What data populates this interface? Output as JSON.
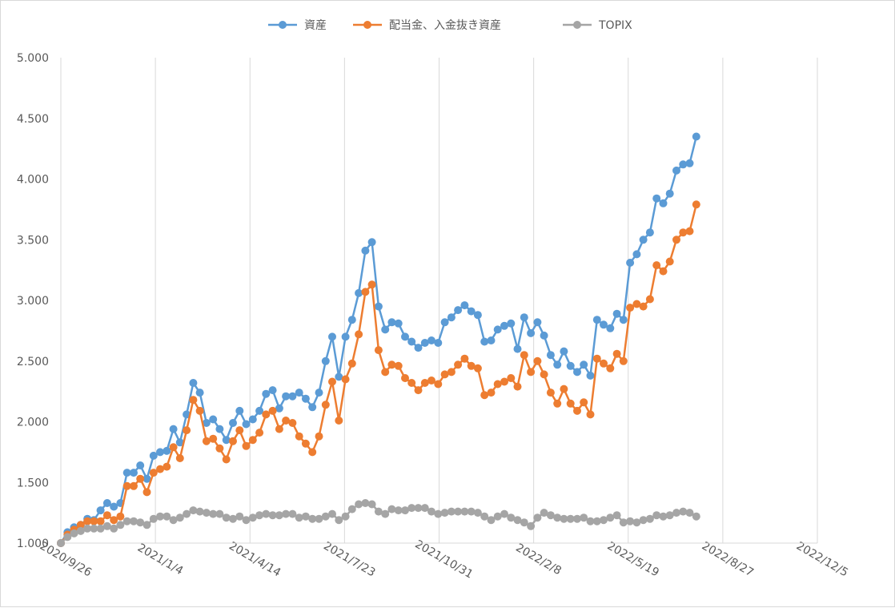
{
  "chart_data": {
    "type": "line",
    "title": "",
    "xlabel": "",
    "ylabel": "",
    "x_axis": {
      "type": "date",
      "min": "2020-09-26",
      "max": "2022-12-05",
      "tick_labels": [
        "2020/9/26",
        "2021/1/4",
        "2021/4/14",
        "2021/7/23",
        "2021/10/31",
        "2022/2/8",
        "2022/5/19",
        "2022/8/27",
        "2022/12/5"
      ]
    },
    "y_axis": {
      "min": 1.0,
      "max": 5.0,
      "step": 0.5,
      "tick_labels": [
        "1.000",
        "1.500",
        "2.000",
        "2.500",
        "3.000",
        "3.500",
        "4.000",
        "4.500",
        "5.000"
      ]
    },
    "grid": "vertical gridlines only",
    "legend_position": "top",
    "start_date": "2020-09-26",
    "interval_days": 7,
    "series": [
      {
        "name": "資産",
        "color": "#5B9BD5",
        "values": [
          1.0,
          1.09,
          1.13,
          1.15,
          1.2,
          1.19,
          1.27,
          1.33,
          1.3,
          1.33,
          1.58,
          1.58,
          1.64,
          1.53,
          1.72,
          1.75,
          1.76,
          1.94,
          1.83,
          2.06,
          2.32,
          2.24,
          1.99,
          2.02,
          1.94,
          1.85,
          1.99,
          2.09,
          1.98,
          2.02,
          2.09,
          2.23,
          2.26,
          2.11,
          2.21,
          2.21,
          2.24,
          2.19,
          2.12,
          2.24,
          2.5,
          2.7,
          2.37,
          2.7,
          2.84,
          3.06,
          3.41,
          3.48,
          2.95,
          2.76,
          2.82,
          2.81,
          2.7,
          2.66,
          2.61,
          2.65,
          2.67,
          2.65,
          2.82,
          2.86,
          2.92,
          2.96,
          2.91,
          2.88,
          2.66,
          2.67,
          2.76,
          2.79,
          2.81,
          2.6,
          2.86,
          2.73,
          2.82,
          2.71,
          2.55,
          2.47,
          2.58,
          2.46,
          2.41,
          2.47,
          2.38,
          2.84,
          2.8,
          2.77,
          2.89,
          2.84,
          3.31,
          3.38,
          3.5,
          3.56,
          3.84,
          3.8,
          3.88,
          4.07,
          4.12,
          4.13,
          4.35
        ]
      },
      {
        "name": "配当金、入金抜き資産",
        "color": "#ED7D31",
        "values": [
          1.0,
          1.07,
          1.11,
          1.15,
          1.18,
          1.18,
          1.18,
          1.23,
          1.19,
          1.22,
          1.47,
          1.47,
          1.53,
          1.42,
          1.58,
          1.61,
          1.63,
          1.79,
          1.7,
          1.93,
          2.18,
          2.09,
          1.84,
          1.86,
          1.78,
          1.69,
          1.84,
          1.93,
          1.8,
          1.85,
          1.91,
          2.06,
          2.09,
          1.94,
          2.01,
          1.99,
          1.88,
          1.82,
          1.75,
          1.88,
          2.14,
          2.33,
          2.01,
          2.35,
          2.48,
          2.72,
          3.07,
          3.13,
          2.59,
          2.41,
          2.47,
          2.46,
          2.36,
          2.32,
          2.26,
          2.32,
          2.34,
          2.31,
          2.39,
          2.41,
          2.47,
          2.52,
          2.46,
          2.44,
          2.22,
          2.24,
          2.31,
          2.33,
          2.36,
          2.29,
          2.55,
          2.41,
          2.5,
          2.39,
          2.24,
          2.15,
          2.27,
          2.15,
          2.09,
          2.16,
          2.06,
          2.52,
          2.48,
          2.44,
          2.56,
          2.5,
          2.94,
          2.97,
          2.95,
          3.01,
          3.29,
          3.24,
          3.32,
          3.5,
          3.56,
          3.57,
          3.79
        ]
      },
      {
        "name": "TOPIX",
        "color": "#A5A5A5",
        "values": [
          1.0,
          1.05,
          1.08,
          1.1,
          1.12,
          1.12,
          1.12,
          1.14,
          1.12,
          1.15,
          1.18,
          1.18,
          1.17,
          1.15,
          1.2,
          1.22,
          1.22,
          1.19,
          1.21,
          1.24,
          1.27,
          1.26,
          1.25,
          1.24,
          1.24,
          1.21,
          1.2,
          1.22,
          1.19,
          1.21,
          1.23,
          1.24,
          1.23,
          1.23,
          1.24,
          1.24,
          1.21,
          1.22,
          1.2,
          1.2,
          1.22,
          1.24,
          1.19,
          1.22,
          1.28,
          1.32,
          1.33,
          1.32,
          1.26,
          1.24,
          1.28,
          1.27,
          1.27,
          1.29,
          1.29,
          1.29,
          1.26,
          1.24,
          1.25,
          1.26,
          1.26,
          1.26,
          1.26,
          1.25,
          1.22,
          1.19,
          1.22,
          1.24,
          1.21,
          1.19,
          1.17,
          1.14,
          1.21,
          1.25,
          1.23,
          1.21,
          1.2,
          1.2,
          1.2,
          1.21,
          1.18,
          1.18,
          1.19,
          1.21,
          1.23,
          1.17,
          1.18,
          1.17,
          1.19,
          1.2,
          1.23,
          1.22,
          1.23,
          1.25,
          1.26,
          1.25,
          1.22
        ]
      }
    ]
  }
}
